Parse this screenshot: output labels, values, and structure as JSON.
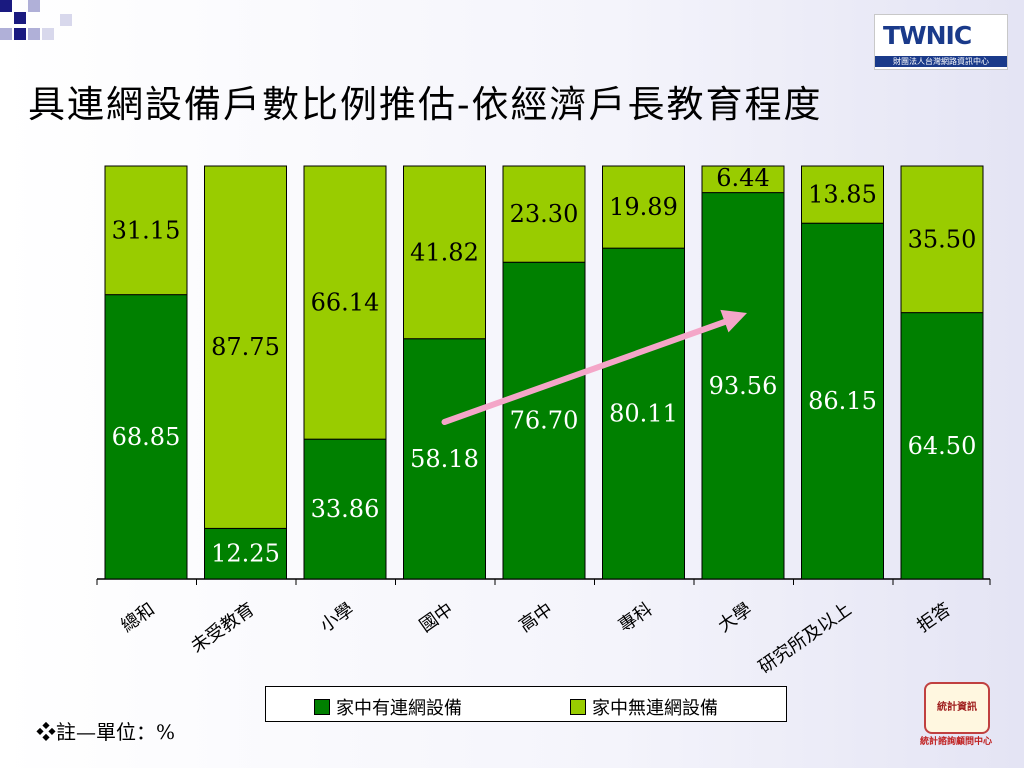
{
  "title": "具連網設備戶數比例推估-依經濟戶長教育程度",
  "logo_twnic": {
    "text": "TWNIC",
    "subtitle": "財團法人台灣網路資訊中心"
  },
  "note": "❖註—單位：%",
  "logo_fju": {
    "badge": "統計資訊",
    "label": "統計諮詢顧問中心"
  },
  "colors": {
    "dark_green": "#008000",
    "light_green": "#99cc00",
    "arrow": "#f4a6c8"
  },
  "chart_data": {
    "type": "bar",
    "stacked": true,
    "categories": [
      "總和",
      "未受教育",
      "小學",
      "國中",
      "高中",
      "專科",
      "大學",
      "研究所及以上",
      "拒答"
    ],
    "series": [
      {
        "name": "家中有連網設備",
        "values": [
          68.85,
          12.25,
          33.86,
          58.18,
          76.7,
          80.11,
          93.56,
          86.15,
          64.5
        ]
      },
      {
        "name": "家中無連網設備",
        "values": [
          31.15,
          87.75,
          66.14,
          41.82,
          23.3,
          19.89,
          6.44,
          13.85,
          35.5
        ]
      }
    ],
    "ylim": [
      0,
      100
    ],
    "legend": "bottom",
    "annotations": [
      {
        "type": "arrow",
        "from_category": "國中",
        "to_category": "大學"
      }
    ]
  }
}
